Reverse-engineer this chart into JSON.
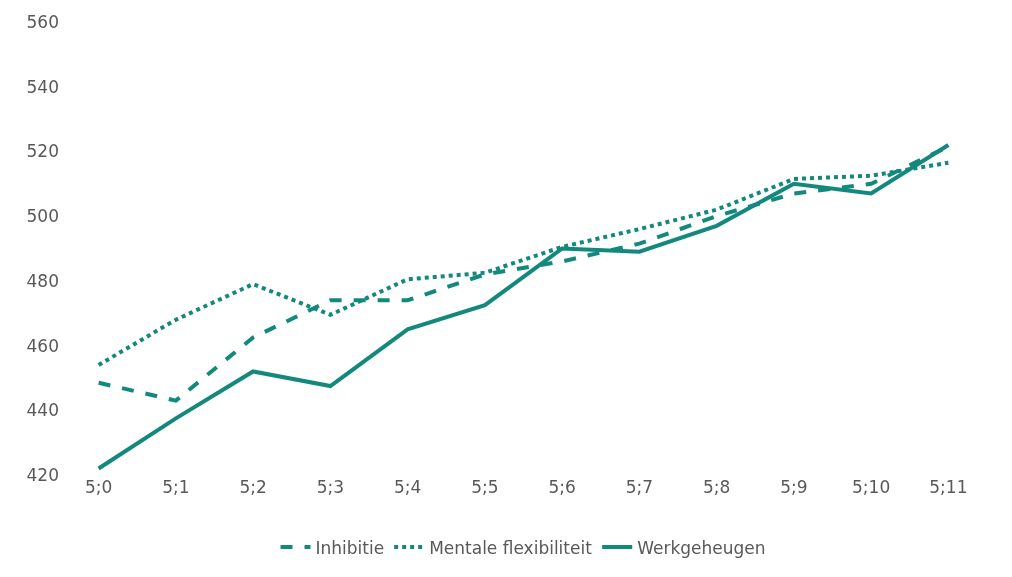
{
  "chart_data": {
    "type": "line",
    "categories": [
      "5;0",
      "5;1",
      "5;2",
      "5;3",
      "5;4",
      "5;5",
      "5;6",
      "5;7",
      "5;8",
      "5;9",
      "5;10",
      "5;11"
    ],
    "series": [
      {
        "name": "Inhibitie",
        "color": "#13897d",
        "line_style": "dashed",
        "values": [
          448.5,
          443,
          462.5,
          474,
          474,
          482,
          486,
          491.5,
          500,
          507,
          510,
          521.5
        ]
      },
      {
        "name": "Mentale flexibiliteit",
        "color": "#13897d",
        "line_style": "dotted",
        "values": [
          454,
          468,
          479,
          469.5,
          480.5,
          482.5,
          490.5,
          496,
          502,
          511.5,
          512.5,
          516.5
        ]
      },
      {
        "name": "Werkgeheugen",
        "color": "#13897d",
        "line_style": "solid",
        "values": [
          422,
          437.5,
          452,
          447.5,
          465,
          472.5,
          490,
          489,
          497,
          510,
          507,
          522
        ]
      }
    ],
    "ylim": [
      420,
      560
    ],
    "yticks": [
      420,
      440,
      460,
      480,
      500,
      520,
      540,
      560
    ],
    "legend": "bottom",
    "marker": "none"
  }
}
